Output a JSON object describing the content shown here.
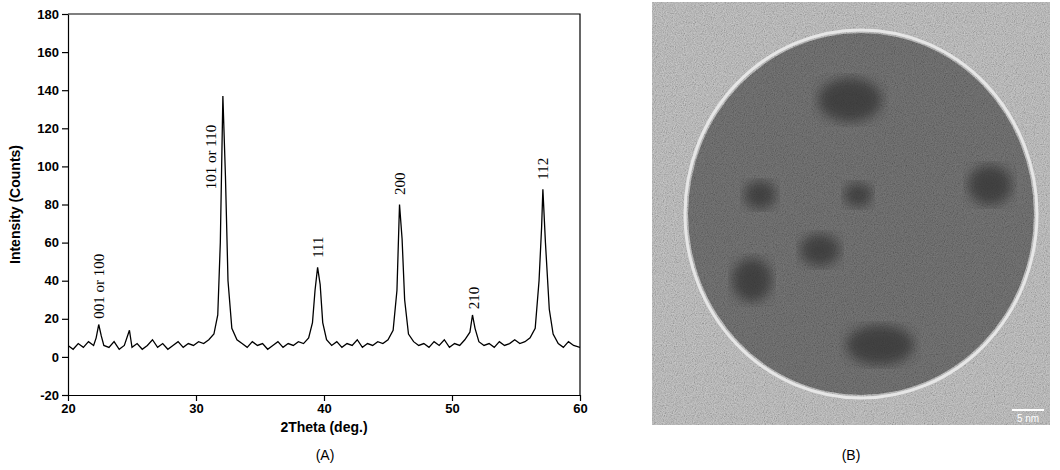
{
  "chart_data": {
    "type": "line",
    "x_label": "2Theta (deg.)",
    "y_label": "Intensity (Counts)",
    "x": [
      20.0,
      20.4,
      20.8,
      21.2,
      21.6,
      22.0,
      22.2,
      22.4,
      22.6,
      22.8,
      23.2,
      23.6,
      24.0,
      24.4,
      24.8,
      25.0,
      25.4,
      25.8,
      26.2,
      26.6,
      27.0,
      27.4,
      27.8,
      28.2,
      28.6,
      29.0,
      29.4,
      29.8,
      30.2,
      30.6,
      31.0,
      31.4,
      31.7,
      31.9,
      32.1,
      32.3,
      32.5,
      32.8,
      33.2,
      33.6,
      34.0,
      34.4,
      34.8,
      35.2,
      35.6,
      36.0,
      36.4,
      36.8,
      37.2,
      37.6,
      38.0,
      38.4,
      38.8,
      39.1,
      39.3,
      39.5,
      39.7,
      39.9,
      40.2,
      40.6,
      41.0,
      41.4,
      41.8,
      42.2,
      42.6,
      43.0,
      43.4,
      43.8,
      44.2,
      44.6,
      45.0,
      45.4,
      45.7,
      45.9,
      46.1,
      46.3,
      46.6,
      47.0,
      47.4,
      47.8,
      48.2,
      48.6,
      49.0,
      49.4,
      49.8,
      50.2,
      50.6,
      51.0,
      51.4,
      51.6,
      51.8,
      52.1,
      52.5,
      52.9,
      53.3,
      53.7,
      54.1,
      54.5,
      54.9,
      55.3,
      55.7,
      56.1,
      56.5,
      56.8,
      57.0,
      57.1,
      57.3,
      57.6,
      57.9,
      58.3,
      58.7,
      59.1,
      59.5,
      60.0
    ],
    "values": [
      6,
      4,
      7,
      5,
      8,
      6,
      10,
      17,
      11,
      6,
      5,
      8,
      4,
      6,
      14,
      5,
      7,
      4,
      6,
      9,
      5,
      7,
      4,
      6,
      8,
      5,
      7,
      6,
      8,
      7,
      9,
      12,
      22,
      60,
      137,
      95,
      40,
      15,
      9,
      7,
      5,
      8,
      6,
      7,
      4,
      6,
      8,
      5,
      7,
      6,
      8,
      7,
      10,
      18,
      35,
      47,
      38,
      18,
      9,
      6,
      8,
      5,
      7,
      6,
      9,
      5,
      7,
      6,
      8,
      7,
      9,
      14,
      35,
      80,
      62,
      30,
      12,
      8,
      6,
      7,
      5,
      8,
      6,
      9,
      5,
      7,
      6,
      9,
      13,
      22,
      15,
      8,
      6,
      7,
      5,
      8,
      6,
      7,
      9,
      7,
      8,
      10,
      15,
      40,
      68,
      88,
      60,
      25,
      12,
      7,
      5,
      8,
      6,
      5
    ],
    "color": "#000000",
    "xlim": [
      20,
      60
    ],
    "xticks": [
      20,
      30,
      40,
      50,
      60
    ],
    "ylim": [
      -20,
      180
    ],
    "yticks": [
      -20,
      0,
      20,
      40,
      60,
      80,
      100,
      120,
      140,
      160,
      180
    ],
    "annotations": [
      {
        "text": "001 or 100",
        "x": 22.4,
        "y": 20
      },
      {
        "text": "101 or 110",
        "x": 31.2,
        "y": 88
      },
      {
        "text": "111",
        "x": 39.5,
        "y": 52
      },
      {
        "text": "200",
        "x": 45.9,
        "y": 85
      },
      {
        "text": "210",
        "x": 51.7,
        "y": 25
      },
      {
        "text": "112",
        "x": 57.1,
        "y": 93
      }
    ]
  },
  "panel_labels": [
    "(A)",
    "(B)"
  ],
  "micrograph": {
    "scale_bar": "5 nm"
  }
}
